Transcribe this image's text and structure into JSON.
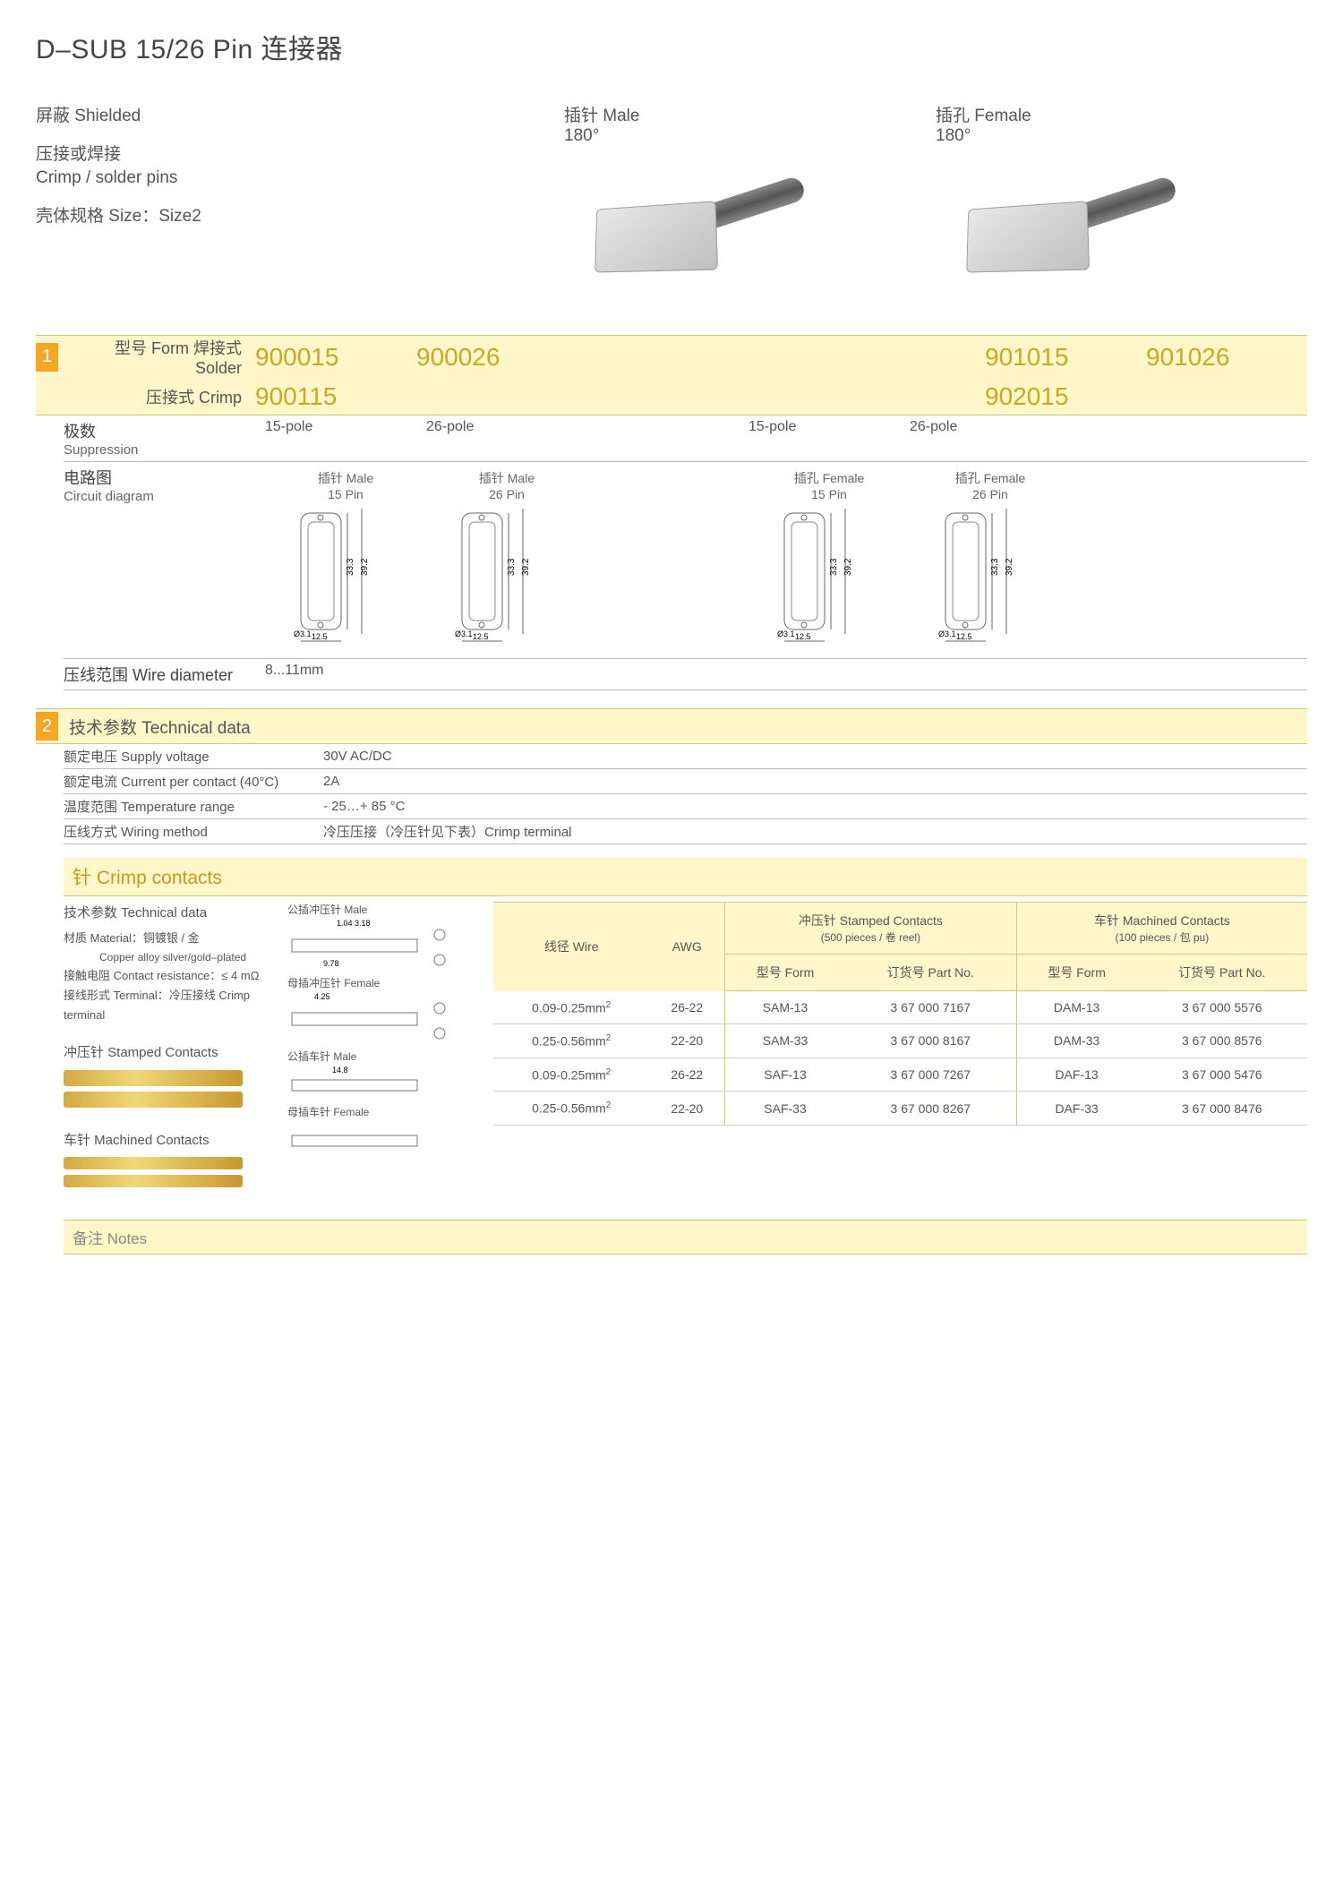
{
  "colors": {
    "accent_bg": "#fff6c9",
    "accent_text": "#caa820",
    "section_tag_bg": "#f5a623",
    "border": "#bbb",
    "accent_border": "#d4c87a"
  },
  "title": "D–SUB 15/26 Pin 连接器",
  "attributes": {
    "shielded": "屏蔽  Shielded",
    "crimp_cn": "压接或焊接",
    "crimp_en": "Crimp / solder pins",
    "size": "壳体规格 Size：Size2"
  },
  "variants": {
    "male": {
      "label": "插针  Male",
      "angle": "180°"
    },
    "female": {
      "label": "插孔  Female",
      "angle": "180°"
    }
  },
  "section1": {
    "tag": "1",
    "form_label": "型号 Form  焊接式 Solder",
    "crimp_label": "压接式 Crimp",
    "solder_pn": [
      "900015",
      "900026",
      "901015",
      "901026"
    ],
    "crimp_pn": [
      "900115",
      "",
      "902015",
      ""
    ],
    "suppression": {
      "label_cn": "极数",
      "label_en": "Suppression",
      "values": [
        "15-pole",
        "26-pole",
        "15-pole",
        "26-pole"
      ]
    },
    "circuit": {
      "label_cn": "电路图",
      "label_en": "Circuit diagram",
      "diagrams": [
        {
          "title_cn": "插针 Male",
          "title_en": "15 Pin",
          "h": "33.3",
          "h2": "39.2",
          "w": "12.5",
          "d": "Ø3.1"
        },
        {
          "title_cn": "插针 Male",
          "title_en": "26 Pin",
          "h": "33.3",
          "h2": "39.2",
          "w": "12.5",
          "d": "Ø3.1"
        },
        {
          "title_cn": "插孔 Female",
          "title_en": "15 Pin",
          "h": "33.3",
          "h2": "39.2",
          "w": "12.5",
          "d": "Ø3.1"
        },
        {
          "title_cn": "插孔 Female",
          "title_en": "26 Pin",
          "h": "33.3",
          "h2": "39.2",
          "w": "12.5",
          "d": "Ø3.1"
        }
      ]
    },
    "wire_dia": {
      "label": "压线范围 Wire diameter",
      "value": "8...11mm"
    }
  },
  "section2": {
    "tag": "2",
    "header": "技术参数 Technical data",
    "rows": [
      {
        "label": "额定电压 Supply voltage",
        "value": "30V AC/DC"
      },
      {
        "label": "额定电流 Current per contact (40°C)",
        "value": "2A"
      },
      {
        "label": "温度范围 Temperature range",
        "value": "- 25…+ 85 °C"
      },
      {
        "label": "压线方式 Wiring method",
        "value": "冷压压接（冷压针见下表）Crimp terminal"
      }
    ]
  },
  "crimp_section": {
    "header": "针 Crimp contacts",
    "tech_title": "技术参数 Technical data",
    "material_label": "材质 Material：铜镀银 / 金",
    "material_sub": "Copper alloy silver/gold–plated",
    "resistance": "接触电阻 Contact resistance：≤ 4 mΩ",
    "terminal": "接线形式 Terminal：冷压接线 Crimp terminal",
    "stamped_label": "冲压针 Stamped Contacts",
    "machined_label": "车针 Machined Contacts",
    "drawings": [
      {
        "label": "公插冲压针 Male"
      },
      {
        "label": "母插冲压针 Female"
      },
      {
        "label": "公插车针 Male"
      },
      {
        "label": "母插车针 Female"
      }
    ],
    "table": {
      "head_wire": "线径 Wire",
      "head_awg": "AWG",
      "head_stamped": "冲压针 Stamped Contacts",
      "head_stamped_sub": "(500 pieces / 卷 reel)",
      "head_machined": "车针 Machined Contacts",
      "head_machined_sub": "(100 pieces / 包 pu)",
      "head_form": "型号 Form",
      "head_partno": "订货号 Part No.",
      "rows": [
        {
          "wire": "0.09-0.25mm",
          "awg": "26-22",
          "sf": "SAM-13",
          "sp": "3  67  000  7167",
          "mf": "DAM-13",
          "mp": "3  67  000  5576"
        },
        {
          "wire": "0.25-0.56mm",
          "awg": "22-20",
          "sf": "SAM-33",
          "sp": "3  67  000  8167",
          "mf": "DAM-33",
          "mp": "3  67  000  8576"
        },
        {
          "wire": "0.09-0.25mm",
          "awg": "26-22",
          "sf": "SAF-13",
          "sp": "3  67  000  7267",
          "mf": "DAF-13",
          "mp": "3  67  000  5476"
        },
        {
          "wire": "0.25-0.56mm",
          "awg": "22-20",
          "sf": "SAF-33",
          "sp": "3  67  000  8267",
          "mf": "DAF-33",
          "mp": "3  67  000  8476"
        }
      ]
    }
  },
  "notes_label": "备注 Notes"
}
